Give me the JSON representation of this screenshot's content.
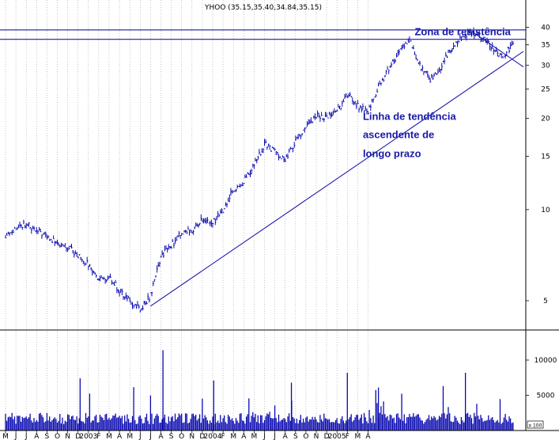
{
  "chart_data": {
    "type": "line",
    "title": "YHOO (35.15,35.40,34.84,35.15)",
    "price_axis": {
      "ticks": [
        5,
        10,
        15,
        20,
        25,
        30,
        35,
        40
      ],
      "scale": "log",
      "range": [
        4,
        43
      ]
    },
    "volume_axis": {
      "ticks": [
        5000,
        10000
      ],
      "range": [
        0,
        11500
      ],
      "unit_label": "x 100"
    },
    "x_axis": {
      "labels": [
        "M",
        "J",
        "J",
        "A",
        "S",
        "O",
        "N",
        "D",
        "2003",
        "F",
        "M",
        "A",
        "M",
        "J",
        "J",
        "A",
        "S",
        "O",
        "N",
        "D",
        "2004",
        "F",
        "M",
        "A",
        "M",
        "J",
        "J",
        "A",
        "S",
        "O",
        "N",
        "D",
        "2005",
        "F",
        "M",
        "A"
      ]
    },
    "price_series": {
      "name": "YHOO",
      "anchors": [
        [
          0,
          8.2
        ],
        [
          2,
          9.0
        ],
        [
          4,
          8.1
        ],
        [
          6,
          7.5
        ],
        [
          8,
          6.6
        ],
        [
          9,
          5.8
        ],
        [
          10,
          6.0
        ],
        [
          11,
          5.4
        ],
        [
          12,
          5.0
        ],
        [
          13,
          4.7
        ],
        [
          14,
          5.2
        ],
        [
          15,
          7.0
        ],
        [
          16,
          7.6
        ],
        [
          17,
          8.4
        ],
        [
          18,
          8.5
        ],
        [
          19,
          9.3
        ],
        [
          20,
          9.0
        ],
        [
          21,
          10.0
        ],
        [
          22,
          11.7
        ],
        [
          23,
          12.4
        ],
        [
          24,
          14.0
        ],
        [
          25,
          16.5
        ],
        [
          26,
          15.5
        ],
        [
          27,
          14.6
        ],
        [
          28,
          16.8
        ],
        [
          29,
          18.5
        ],
        [
          30,
          20.5
        ],
        [
          31,
          20.0
        ],
        [
          32,
          21.0
        ],
        [
          33,
          24.0
        ],
        [
          34,
          22.0
        ],
        [
          35,
          21.0
        ],
        [
          36,
          25.5
        ],
        [
          37,
          29.0
        ],
        [
          38,
          33.0
        ],
        [
          39,
          36.5
        ],
        [
          40,
          30.0
        ],
        [
          41,
          27.0
        ],
        [
          42,
          29.5
        ],
        [
          43,
          34.0
        ],
        [
          44,
          37.0
        ],
        [
          45,
          38.5
        ],
        [
          46,
          37.0
        ],
        [
          47,
          34.5
        ],
        [
          48,
          32.0
        ],
        [
          49,
          35.3
        ]
      ]
    },
    "reference_lines": {
      "resistance": [
        39.2,
        36.5
      ],
      "long_trendline": [
        [
          14,
          4.8
        ],
        [
          50,
          33.3
        ]
      ],
      "short_trendline": [
        [
          45,
          38.8
        ],
        [
          50,
          29.6
        ]
      ]
    },
    "annotations": [
      {
        "text": "Zona de resistência",
        "x": 39.5,
        "y": 37.7
      },
      {
        "text": "Linha de tendência",
        "x": 34.5,
        "y": 19.8
      },
      {
        "text": "ascendente de",
        "x": 34.5,
        "y": 17.2
      },
      {
        "text": "longo prazo",
        "x": 34.5,
        "y": 14.9
      }
    ],
    "colors": {
      "price": "#0a0ab0",
      "volume": "#0a0ab0",
      "annotation": "#1a1aa8",
      "lines": "#1a1aa8",
      "grid": "#9aa0b4"
    }
  }
}
